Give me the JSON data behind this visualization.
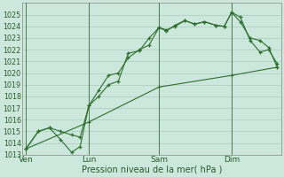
{
  "xlabel": "Pression niveau de la mer( hPa )",
  "bg_color": "#cce8dc",
  "plot_bg_color": "#cce8dc",
  "grid_color": "#aaccc0",
  "line_color": "#2d6e2d",
  "vline_color": "#4a7a4a",
  "ylim": [
    1013,
    1026
  ],
  "xlim": [
    0,
    10.5
  ],
  "yticks": [
    1013,
    1014,
    1015,
    1016,
    1017,
    1018,
    1019,
    1020,
    1021,
    1022,
    1023,
    1024,
    1025
  ],
  "xtick_labels": [
    "Ven",
    "Lun",
    "Sam",
    "Dim"
  ],
  "xtick_positions": [
    0.15,
    2.7,
    5.55,
    8.5
  ],
  "vline_positions": [
    0.15,
    2.7,
    5.55,
    8.5
  ],
  "s1_x": [
    0.15,
    0.65,
    1.1,
    1.55,
    2.0,
    2.35,
    2.7,
    3.1,
    3.5,
    3.9,
    4.3,
    4.75,
    5.15,
    5.55,
    5.85,
    6.2,
    6.6,
    7.0,
    7.4,
    7.85,
    8.2,
    8.5,
    8.85,
    9.25,
    9.65,
    10.0,
    10.35
  ],
  "s1_y": [
    1013.5,
    1015.0,
    1015.3,
    1015.0,
    1014.7,
    1014.5,
    1017.2,
    1018.0,
    1019.0,
    1019.3,
    1021.7,
    1021.9,
    1023.0,
    1023.9,
    1023.6,
    1024.1,
    1024.5,
    1024.2,
    1024.4,
    1024.1,
    1024.0,
    1025.2,
    1024.8,
    1022.8,
    1021.8,
    1022.0,
    1020.8
  ],
  "s2_x": [
    0.15,
    0.65,
    1.1,
    1.55,
    2.0,
    2.35,
    2.7,
    3.1,
    3.5,
    3.9,
    4.3,
    4.75,
    5.15,
    5.55,
    5.85,
    6.2,
    6.6,
    7.0,
    7.4,
    7.85,
    8.2,
    8.5,
    8.85,
    9.25,
    9.65,
    10.0,
    10.35
  ],
  "s2_y": [
    1013.5,
    1015.0,
    1015.3,
    1014.3,
    1013.2,
    1013.7,
    1017.2,
    1018.5,
    1019.8,
    1020.0,
    1021.3,
    1022.0,
    1022.4,
    1023.9,
    1023.7,
    1024.0,
    1024.5,
    1024.2,
    1024.4,
    1024.1,
    1024.0,
    1025.2,
    1024.4,
    1023.0,
    1022.8,
    1022.2,
    1020.5
  ],
  "s3_x": [
    0.15,
    2.7,
    5.55,
    8.5,
    10.35
  ],
  "s3_y": [
    1013.5,
    1015.8,
    1018.8,
    1019.8,
    1020.5
  ]
}
